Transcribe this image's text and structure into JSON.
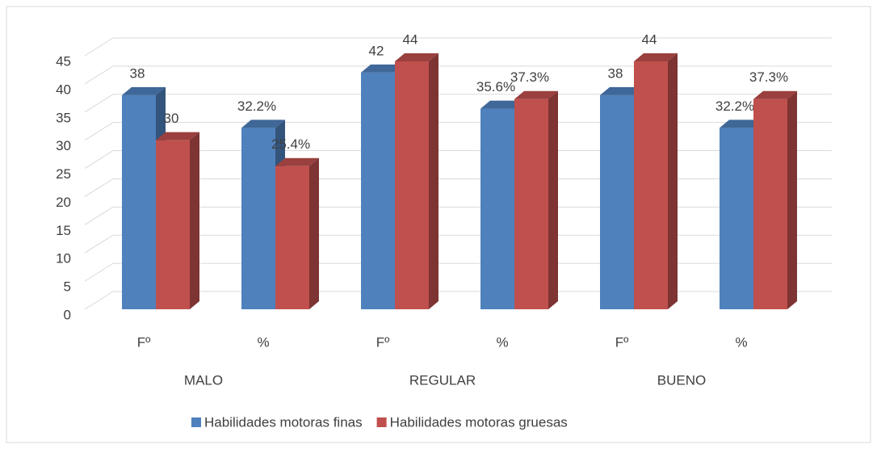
{
  "chart_data": {
    "type": "bar3d",
    "categories": [
      "Fº",
      "%",
      "Fº",
      "%",
      "Fº",
      "%"
    ],
    "groups": [
      "MALO",
      "REGULAR",
      "BUENO"
    ],
    "series": [
      {
        "name": "Habilidades motoras finas",
        "color": "#4f81bd",
        "values": [
          38,
          32.2,
          42,
          35.6,
          38,
          32.2
        ],
        "value_labels": [
          "38",
          "32.2%",
          "42",
          "35.6%",
          "38",
          "32.2%"
        ]
      },
      {
        "name": "Habilidades motoras gruesas",
        "color": "#c0504d",
        "values": [
          30,
          25.4,
          44,
          37.3,
          44,
          37.3
        ],
        "value_labels": [
          "30",
          "25.4%",
          "44",
          "37.3%",
          "44",
          "37.3%"
        ]
      }
    ],
    "ylim": [
      0,
      45
    ],
    "yticks": [
      0,
      5,
      10,
      15,
      20,
      25,
      30,
      35,
      40,
      45
    ],
    "grid": true,
    "legend": "bottom"
  }
}
